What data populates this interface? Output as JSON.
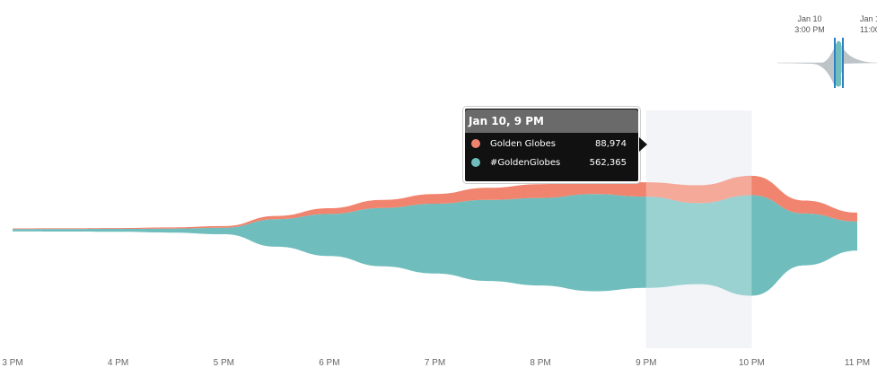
{
  "colors": {
    "golden_globes": "#f0846e",
    "hashtag": "#6fbdbd",
    "selection": "#eef0f5"
  },
  "tooltip": {
    "title": "Jan 10, 9 PM",
    "rows": [
      {
        "name": "Golden Globes",
        "value": "88,974",
        "color": "#f0846e"
      },
      {
        "name": "#GoldenGlobes",
        "value": "562,365",
        "color": "#6fbdbd"
      }
    ]
  },
  "mini_timeline": {
    "labels": [
      {
        "line1": "Jan 10",
        "line2": "3:00 PM"
      },
      {
        "line1": "Jan 1",
        "line2": "11:00"
      }
    ]
  },
  "chart_data": {
    "type": "area",
    "subtype": "streamgraph",
    "x": [
      "3:00 PM",
      "3:30 PM",
      "4:00 PM",
      "4:30 PM",
      "5:00 PM",
      "5:30 PM",
      "6:00 PM",
      "6:30 PM",
      "7:00 PM",
      "7:30 PM",
      "8:00 PM",
      "8:30 PM",
      "9:00 PM",
      "9:30 PM",
      "10:00 PM",
      "10:30 PM",
      "11:00 PM"
    ],
    "x_tick_labels": [
      "3 PM",
      "4 PM",
      "5 PM",
      "6 PM",
      "7 PM",
      "8 PM",
      "9 PM",
      "10 PM",
      "11 PM"
    ],
    "series": [
      {
        "name": "Golden Globes",
        "values": [
          4000,
          4000,
          5000,
          7000,
          10000,
          20000,
          35000,
          50000,
          60000,
          75000,
          85000,
          90000,
          88974,
          110000,
          120000,
          80000,
          55000
        ]
      },
      {
        "name": "#GoldenGlobes",
        "values": [
          15000,
          16000,
          18000,
          25000,
          40000,
          170000,
          260000,
          360000,
          430000,
          500000,
          540000,
          600000,
          562365,
          500000,
          620000,
          320000,
          180000
        ]
      }
    ],
    "selected_range": [
      "9:00 PM",
      "10:00 PM"
    ],
    "legend": "tooltip"
  }
}
